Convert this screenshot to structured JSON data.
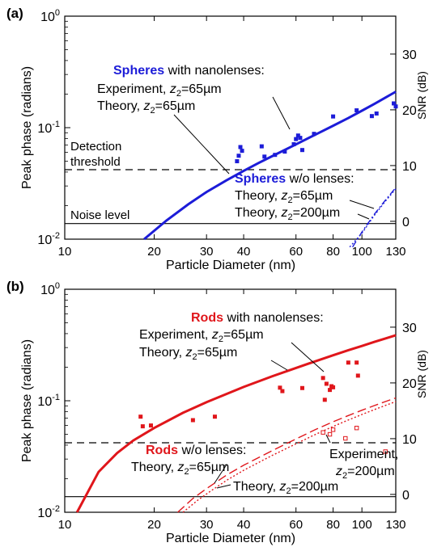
{
  "chart_data": [
    {
      "panel": "(a)",
      "type": "scatter",
      "xlabel": "Particle Diameter (nm)",
      "ylabel": "Peak phase (radians)",
      "y2label": "SNR (dB)",
      "xscale": "log",
      "yscale": "log",
      "xlim": [
        10,
        130
      ],
      "ylim": [
        0.01,
        1
      ],
      "y2lim": [
        -3.2,
        36.8
      ],
      "xticks": [
        {
          "v": 10,
          "t": "10"
        },
        {
          "v": 20,
          "t": "20"
        },
        {
          "v": 30,
          "t": "30"
        },
        {
          "v": 40,
          "t": "40"
        },
        {
          "v": 60,
          "t": "60"
        },
        {
          "v": 80,
          "t": "80"
        },
        {
          "v": 100,
          "t": "100"
        },
        {
          "v": 130,
          "t": "130"
        }
      ],
      "yticks": [
        {
          "v": 0.01,
          "b": "10",
          "e": "-2"
        },
        {
          "v": 0.1,
          "b": "10",
          "e": "-1"
        },
        {
          "v": 1,
          "b": "10",
          "e": "0"
        }
      ],
      "y2ticks": [
        0,
        10,
        20,
        30
      ],
      "reference_lines": [
        {
          "name": "threshold",
          "style": "dashed",
          "y": 0.042
        },
        {
          "name": "noise",
          "style": "solid",
          "y": 0.0138
        }
      ],
      "series": [
        {
          "name": "Spheres with nanolenses: Theory, z2=65µm",
          "kind": "line",
          "color": "#1c1cd8",
          "style": "solid",
          "x": [
            18.5,
            22,
            26,
            30,
            35,
            40,
            45,
            50,
            60,
            70,
            80,
            90,
            100,
            110,
            120,
            130
          ],
          "y": [
            0.01,
            0.0147,
            0.0205,
            0.0265,
            0.0337,
            0.041,
            0.0483,
            0.0557,
            0.0708,
            0.087,
            0.104,
            0.122,
            0.142,
            0.163,
            0.186,
            0.21
          ]
        },
        {
          "name": "Spheres with nanolenses: Experiment, z2=65µm",
          "kind": "scatter",
          "color": "#1c1cd8",
          "x": [
            38,
            38.5,
            39,
            39.5,
            46,
            47,
            51,
            55,
            59,
            60,
            61,
            62,
            63,
            69,
            80,
            96,
            108,
            112,
            128,
            130
          ],
          "y": [
            0.05,
            0.056,
            0.067,
            0.062,
            0.068,
            0.055,
            0.057,
            0.061,
            0.071,
            0.079,
            0.085,
            0.081,
            0.063,
            0.088,
            0.126,
            0.143,
            0.127,
            0.134,
            0.165,
            0.155
          ]
        },
        {
          "name": "Spheres w/o lenses: Theory, z2=65µm",
          "kind": "line",
          "color": "#1c1cd8",
          "style": "dashdot",
          "x": [
            93,
            100,
            110,
            120,
            130
          ],
          "y": [
            0.0085,
            0.0116,
            0.0167,
            0.0224,
            0.029
          ]
        },
        {
          "name": "Spheres w/o lenses: Theory, z2=200µm",
          "kind": "line",
          "color": "#1c1cd8",
          "style": "dotted",
          "x": [
            91,
            100,
            110,
            120,
            130
          ],
          "y": [
            0.0085,
            0.0113,
            0.0163,
            0.0219,
            0.0283
          ]
        }
      ]
    },
    {
      "panel": "(b)",
      "type": "scatter",
      "xlabel": "Particle Diameter (nm)",
      "ylabel": "Peak phase (radians)",
      "y2label": "SNR (dB)",
      "xscale": "log",
      "yscale": "log",
      "xlim": [
        10,
        130
      ],
      "ylim": [
        0.01,
        1
      ],
      "y2lim": [
        -3.2,
        36.8
      ],
      "xticks": [
        {
          "v": 10,
          "t": "10"
        },
        {
          "v": 20,
          "t": "20"
        },
        {
          "v": 30,
          "t": "30"
        },
        {
          "v": 40,
          "t": "40"
        },
        {
          "v": 60,
          "t": "60"
        },
        {
          "v": 80,
          "t": "80"
        },
        {
          "v": 100,
          "t": "100"
        },
        {
          "v": 130,
          "t": "130"
        }
      ],
      "yticks": [
        {
          "v": 0.01,
          "b": "10",
          "e": "-2"
        },
        {
          "v": 0.1,
          "b": "10",
          "e": "-1"
        },
        {
          "v": 1,
          "b": "10",
          "e": "0"
        }
      ],
      "y2ticks": [
        0,
        10,
        20,
        30
      ],
      "reference_lines": [
        {
          "name": "threshold",
          "style": "dashed",
          "y": 0.042
        },
        {
          "name": "noise",
          "style": "solid",
          "y": 0.0138
        }
      ],
      "series": [
        {
          "name": "Rods with nanolenses: Theory, z2=65µm",
          "kind": "line",
          "color": "#e0161b",
          "style": "solid",
          "x": [
            11,
            13,
            15,
            17,
            20,
            25,
            30,
            40,
            50,
            60,
            70,
            80,
            90,
            100,
            110,
            120,
            130
          ],
          "y": [
            0.01,
            0.023,
            0.034,
            0.044,
            0.057,
            0.078,
            0.097,
            0.133,
            0.166,
            0.197,
            0.227,
            0.256,
            0.284,
            0.31,
            0.337,
            0.362,
            0.387
          ]
        },
        {
          "name": "Rods with nanolenses: Experiment, z2=65µm",
          "kind": "scatter",
          "color": "#e0161b",
          "x": [
            18,
            18.3,
            19.5,
            27,
            32,
            53,
            54,
            63,
            74,
            75,
            76,
            78,
            79,
            80,
            90,
            96,
            97
          ],
          "y": [
            0.072,
            0.059,
            0.06,
            0.067,
            0.072,
            0.131,
            0.122,
            0.13,
            0.16,
            0.102,
            0.142,
            0.125,
            0.135,
            0.132,
            0.22,
            0.22,
            0.168
          ]
        },
        {
          "name": "Rods w/o lenses: Theory, z2=65µm",
          "kind": "line",
          "color": "#e0161b",
          "style": "dashed",
          "x": [
            24,
            27,
            30,
            35,
            40,
            50,
            60,
            70,
            80,
            90,
            100,
            110,
            120,
            130
          ],
          "y": [
            0.01,
            0.0133,
            0.0163,
            0.0215,
            0.0264,
            0.0358,
            0.0454,
            0.0554,
            0.0648,
            0.0737,
            0.0823,
            0.0905,
            0.0984,
            0.106
          ]
        },
        {
          "name": "Rods w/o lenses: Theory, z2=200µm",
          "kind": "line",
          "color": "#e0161b",
          "style": "dotted",
          "x": [
            25,
            28,
            31,
            35,
            40,
            50,
            60,
            70,
            80,
            90,
            100,
            110,
            120,
            130
          ],
          "y": [
            0.01,
            0.0128,
            0.0155,
            0.0193,
            0.0238,
            0.0324,
            0.0411,
            0.0501,
            0.0588,
            0.0672,
            0.0753,
            0.0832,
            0.0908,
            0.0983
          ]
        },
        {
          "name": "Rods w/o lenses: Experiment, z2=200µm",
          "kind": "scatter-open",
          "color": "#e0161b",
          "x": [
            74,
            78,
            80,
            88,
            96,
            120
          ],
          "y": [
            0.052,
            0.05,
            0.055,
            0.046,
            0.057,
            0.035
          ]
        }
      ]
    }
  ],
  "panel_a": {
    "label": "(a)",
    "y_title": "Peak phase (radians)",
    "y2_title": "SNR (dB)",
    "x_title": "Particle Diameter (nm)",
    "annot_with_head": "Spheres",
    "annot_with_tail": " with nanolenses:",
    "annot_exp_prefix": "Experiment, ",
    "annot_theory_prefix": "Theory, ",
    "z_sym": "z",
    "z_sub": "2",
    "val_65": "=65",
    "val_200": "=200",
    "um": "µm",
    "threshold_line1": "Detection",
    "threshold_line2": "threshold",
    "noise_label": "Noise level",
    "annot_wo_head": "Spheres",
    "annot_wo_tail": " w/o lenses:"
  },
  "panel_b": {
    "label": "(b)",
    "y_title": "Peak phase (radians)",
    "y2_title": "SNR (dB)",
    "x_title": "Particle Diameter (nm)",
    "annot_with_head": "Rods",
    "annot_with_tail": " with nanolenses:",
    "annot_exp_prefix": "Experiment, ",
    "annot_theory_prefix": "Theory, ",
    "z_sym": "z",
    "z_sub": "2",
    "val_65": "=65",
    "val_200": "=200",
    "um": "µm",
    "annot_wo_head": "Rods",
    "annot_wo_tail": " w/o lenses:",
    "annot_exp200_prefix": "Experiment,"
  },
  "colors": {
    "blue": "#1c1cd8",
    "red": "#e0161b",
    "axis": "#000000"
  }
}
